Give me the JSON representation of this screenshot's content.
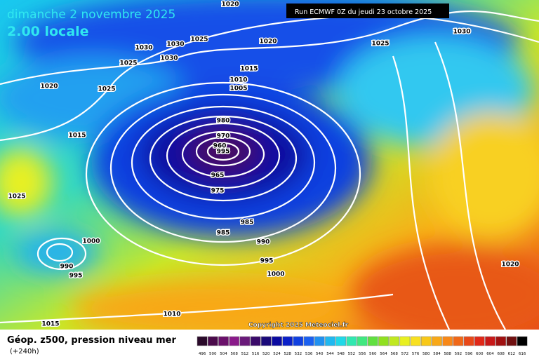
{
  "header": {
    "title": "dimanche 2 novembre 2025",
    "subtitle": "2.00 locale",
    "run": "Run ECMWF 0Z du jeudi 23 octobre 2025"
  },
  "copyright": "Copyright 2025 Meteociel.fr",
  "footer": {
    "title": "Géop. z500, pression niveau mer",
    "lead": "(+240h)"
  },
  "legend": {
    "labels": [
      496,
      500,
      504,
      508,
      512,
      516,
      520,
      524,
      528,
      532,
      536,
      540,
      544,
      548,
      552,
      556,
      560,
      564,
      568,
      572,
      576,
      580,
      584,
      588,
      592,
      596,
      600,
      604,
      608,
      612,
      616
    ],
    "colors": [
      "#2a0a2a",
      "#4a0a4a",
      "#6a106a",
      "#8a1a8a",
      "#6a1a7a",
      "#3a0a6a",
      "#1a0a7a",
      "#0a0aa0",
      "#0a20c8",
      "#1040e0",
      "#1a60f0",
      "#2090f0",
      "#20b8f0",
      "#20d8e8",
      "#30e8b0",
      "#40e880",
      "#60e040",
      "#90e020",
      "#c0e820",
      "#e8f020",
      "#f8e020",
      "#f8c818",
      "#f8a818",
      "#f88818",
      "#f06818",
      "#e84818",
      "#e02818",
      "#c81818",
      "#a01010",
      "#701010",
      "#000000"
    ]
  },
  "isobar_labels": [
    "1020",
    "1025",
    "1030",
    "1030",
    "1030",
    "1020",
    "1025",
    "1030",
    "1025",
    "1015",
    "1020",
    "1025",
    "1010",
    "1005",
    "1015",
    "980",
    "970",
    "960",
    "995",
    "965",
    "975",
    "1025",
    "985",
    "985",
    "1000",
    "990",
    "990",
    "995",
    "995",
    "1000",
    "1020",
    "1010",
    "1015"
  ]
}
